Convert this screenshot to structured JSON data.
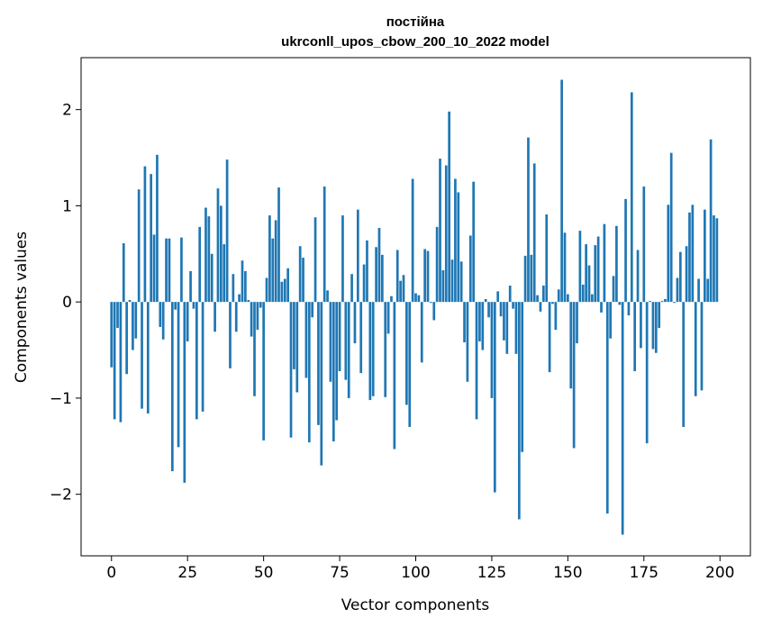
{
  "chart_data": {
    "type": "bar",
    "title_line1": "постійна",
    "title_line2": "ukrconll_upos_cbow_200_10_2022 model",
    "xlabel": "Vector components",
    "ylabel": "Components values",
    "xlim": [
      -10,
      210
    ],
    "ylim": [
      -2.64,
      2.54
    ],
    "xticks": [
      0,
      25,
      50,
      75,
      100,
      125,
      150,
      175,
      200
    ],
    "xtick_labels": [
      "0",
      "25",
      "50",
      "75",
      "100",
      "125",
      "150",
      "175",
      "200"
    ],
    "yticks": [
      -2,
      -1,
      0,
      1,
      2
    ],
    "ytick_labels": [
      "−2",
      "−1",
      "0",
      "1",
      "2"
    ],
    "grid": false,
    "bar_color": "#1f77b4",
    "values": [
      -0.68,
      -1.22,
      -0.27,
      -1.25,
      0.61,
      -0.75,
      0.02,
      -0.5,
      -0.38,
      1.17,
      -1.11,
      1.41,
      -1.16,
      1.33,
      0.7,
      1.53,
      -0.26,
      -0.39,
      0.66,
      0.66,
      -1.76,
      -0.08,
      -1.51,
      0.67,
      -1.88,
      -0.41,
      0.32,
      -0.07,
      -1.22,
      0.78,
      -1.14,
      0.98,
      0.89,
      0.5,
      -0.31,
      1.18,
      1.0,
      0.6,
      1.48,
      -0.69,
      0.29,
      -0.31,
      0.08,
      0.43,
      0.32,
      0.02,
      -0.36,
      -0.98,
      -0.29,
      -0.06,
      -1.44,
      0.25,
      0.9,
      0.66,
      0.85,
      1.19,
      0.21,
      0.24,
      0.35,
      -1.41,
      -0.7,
      -0.94,
      0.58,
      0.46,
      -0.79,
      -1.46,
      -0.16,
      0.88,
      -1.28,
      -1.7,
      1.2,
      0.12,
      -0.83,
      -1.45,
      -1.23,
      -0.72,
      0.9,
      -0.81,
      -1.0,
      0.29,
      -0.43,
      0.96,
      -0.74,
      0.39,
      0.64,
      -1.02,
      -0.98,
      0.57,
      0.77,
      0.49,
      -0.99,
      -0.33,
      0.06,
      -1.53,
      0.54,
      0.22,
      0.28,
      -1.07,
      -1.3,
      1.28,
      0.09,
      0.07,
      -0.63,
      0.55,
      0.53,
      -0.01,
      -0.19,
      0.78,
      1.49,
      0.33,
      1.42,
      1.98,
      0.44,
      1.28,
      1.14,
      0.42,
      -0.42,
      -0.83,
      0.69,
      1.25,
      -1.22,
      -0.41,
      -0.5,
      0.03,
      -0.16,
      -1.0,
      -1.98,
      0.11,
      -0.15,
      -0.4,
      -0.54,
      0.17,
      -0.07,
      -0.54,
      -2.26,
      -1.56,
      0.48,
      1.71,
      0.49,
      1.44,
      0.07,
      -0.1,
      0.17,
      0.91,
      -0.73,
      -0.02,
      -0.29,
      0.13,
      2.31,
      0.72,
      0.08,
      -0.9,
      -1.52,
      -0.43,
      0.74,
      0.18,
      0.6,
      0.38,
      0.08,
      0.59,
      0.68,
      -0.11,
      0.81,
      -2.2,
      -0.38,
      0.27,
      0.79,
      -0.03,
      -2.42,
      1.07,
      -0.14,
      2.18,
      -0.72,
      0.54,
      -0.48,
      1.2,
      -1.47,
      0.01,
      -0.49,
      -0.53,
      -0.27,
      0.01,
      0.03,
      1.01,
      1.55,
      -0.01,
      0.25,
      0.52,
      -1.3,
      0.58,
      0.93,
      1.01,
      -0.98,
      0.24,
      -0.92,
      0.96,
      0.24,
      1.69,
      0.9,
      0.87
    ]
  }
}
